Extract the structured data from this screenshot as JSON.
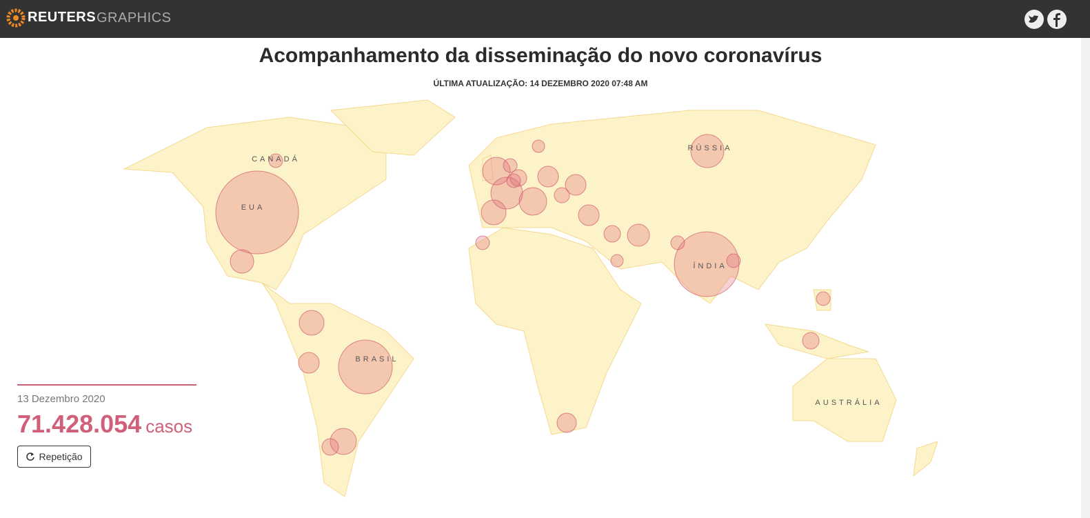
{
  "header": {
    "brand": "REUTERS",
    "section": "GRAPHICS"
  },
  "title": "Acompanhamento da disseminação do novo coronavírus",
  "updated": "ÚLTIMA ATUALIZAÇÃO: 14 DEZEMBRO 2020 07:48 AM",
  "map": {
    "labels": [
      "CANADÁ",
      "EUA",
      "RÚSSIA",
      "ÍNDIA",
      "BRASIL",
      "AUSTRÁLIA"
    ],
    "bubbles": {
      "values": [
        16000000,
        9800000,
        6760000,
        2560000,
        2350000,
        1780000,
        1440000,
        1780000,
        1600000,
        1440000,
        1280000,
        1000000,
        1000000,
        640000,
        1000000,
        1140000,
        1000000,
        870000,
        640000,
        440000,
        640000,
        640000,
        440000,
        440000,
        440000,
        440000,
        360000,
        440000,
        440000,
        540000,
        360000
      ]
    }
  },
  "counter": {
    "date": "13 Dezembro 2020",
    "cases": "71.428.054",
    "unit": "casos"
  },
  "button": "Repetição"
}
